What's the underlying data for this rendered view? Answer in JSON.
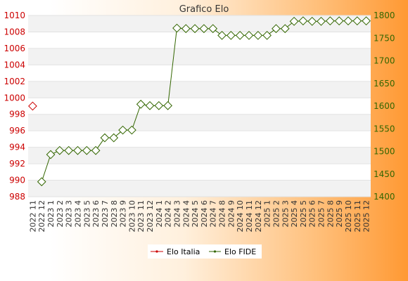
{
  "chart_data": {
    "type": "line",
    "title": "Grafico Elo",
    "categories": [
      "2022 11",
      "2022 12",
      "2023 1",
      "2023 2",
      "2023 3",
      "2023 4",
      "2023 5",
      "2023 6",
      "2023 7",
      "2023 8",
      "2023 9",
      "2023 10",
      "2023 11",
      "2023 12",
      "2024 1",
      "2024 2",
      "2024 3",
      "2024 4",
      "2024 5",
      "2024 6",
      "2024 7",
      "2024 8",
      "2024 9",
      "2024 10",
      "2024 11",
      "2024 12",
      "2025 1",
      "2025 2",
      "2025 3",
      "2025 4",
      "2025 5",
      "2025 6",
      "2025 7",
      "2025 8",
      "2025 9",
      "2025 10",
      "2025 11",
      "2025 12"
    ],
    "series": [
      {
        "name": "Elo Italia",
        "axis": "left",
        "color": "#cc0000",
        "values": [
          999,
          null,
          null,
          null,
          null,
          null,
          null,
          null,
          null,
          null,
          null,
          null,
          null,
          null,
          null,
          null,
          null,
          null,
          null,
          null,
          null,
          null,
          null,
          null,
          null,
          null,
          null,
          null,
          null,
          null,
          null,
          null,
          null,
          null,
          null,
          null,
          null,
          null
        ]
      },
      {
        "name": "Elo FIDE",
        "axis": "right",
        "color": "#336600",
        "values": [
          null,
          1433,
          1493,
          1502,
          1502,
          1502,
          1502,
          1502,
          1530,
          1530,
          1547,
          1547,
          1604,
          1601,
          1601,
          1601,
          1772,
          1771,
          1771,
          1771,
          1771,
          1756,
          1756,
          1756,
          1756,
          1756,
          1756,
          1771,
          1771,
          1787,
          1788,
          1787,
          1787,
          1788,
          1788,
          1788,
          1788,
          1788
        ]
      }
    ],
    "y_left": {
      "min": 988,
      "max": 1010,
      "ticks": [
        "988",
        "990",
        "992",
        "994",
        "996",
        "998",
        "1000",
        "1002",
        "1004",
        "1006",
        "1008",
        "1010"
      ]
    },
    "y_right": {
      "min": 1400,
      "max": 1800,
      "ticks": [
        "1400",
        "1450",
        "1500",
        "1550",
        "1600",
        "1650",
        "1700",
        "1750",
        "1800"
      ]
    },
    "grid": true,
    "legend_position": "bottom"
  }
}
